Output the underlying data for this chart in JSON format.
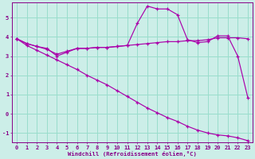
{
  "xlabel": "Windchill (Refroidissement éolien,°C)",
  "background_color": "#cceee8",
  "line_color": "#aa00aa",
  "grid_color": "#99ddcc",
  "xlim": [
    -0.5,
    23.5
  ],
  "ylim": [
    -1.5,
    5.8
  ],
  "yticks": [
    -1,
    0,
    1,
    2,
    3,
    4,
    5
  ],
  "xticks": [
    0,
    1,
    2,
    3,
    4,
    5,
    6,
    7,
    8,
    9,
    10,
    11,
    12,
    13,
    14,
    15,
    16,
    17,
    18,
    19,
    20,
    21,
    22,
    23
  ],
  "line1_x": [
    0,
    1,
    2,
    3,
    4,
    5,
    6,
    7,
    8,
    9,
    10,
    11,
    12,
    13,
    14,
    15,
    16,
    17,
    18,
    19,
    20,
    21,
    22,
    23
  ],
  "line1_y": [
    3.9,
    3.65,
    3.5,
    3.4,
    3.0,
    3.2,
    3.4,
    3.4,
    3.45,
    3.45,
    3.5,
    3.55,
    4.7,
    5.6,
    5.45,
    5.45,
    5.15,
    3.85,
    3.7,
    3.75,
    4.05,
    4.05,
    3.0,
    0.85
  ],
  "line2_x": [
    0,
    1,
    2,
    3,
    4,
    5,
    6,
    7,
    8,
    9,
    10,
    11,
    12,
    13,
    14,
    15,
    16,
    17,
    18,
    19,
    20,
    21,
    22,
    23
  ],
  "line2_y": [
    3.9,
    3.65,
    3.5,
    3.35,
    3.1,
    3.25,
    3.4,
    3.4,
    3.45,
    3.45,
    3.5,
    3.55,
    3.6,
    3.65,
    3.7,
    3.75,
    3.75,
    3.8,
    3.8,
    3.85,
    3.95,
    3.95,
    3.95,
    3.9
  ],
  "line3_x": [
    0,
    1,
    2,
    3,
    4,
    5,
    6,
    7,
    8,
    9,
    10,
    11,
    12,
    13,
    14,
    15,
    16,
    17,
    18,
    19,
    20,
    21,
    22,
    23
  ],
  "line3_y": [
    3.9,
    3.55,
    3.3,
    3.05,
    2.8,
    2.55,
    2.3,
    2.0,
    1.75,
    1.5,
    1.2,
    0.9,
    0.6,
    0.3,
    0.05,
    -0.2,
    -0.4,
    -0.65,
    -0.85,
    -1.0,
    -1.1,
    -1.15,
    -1.25,
    -1.4
  ]
}
